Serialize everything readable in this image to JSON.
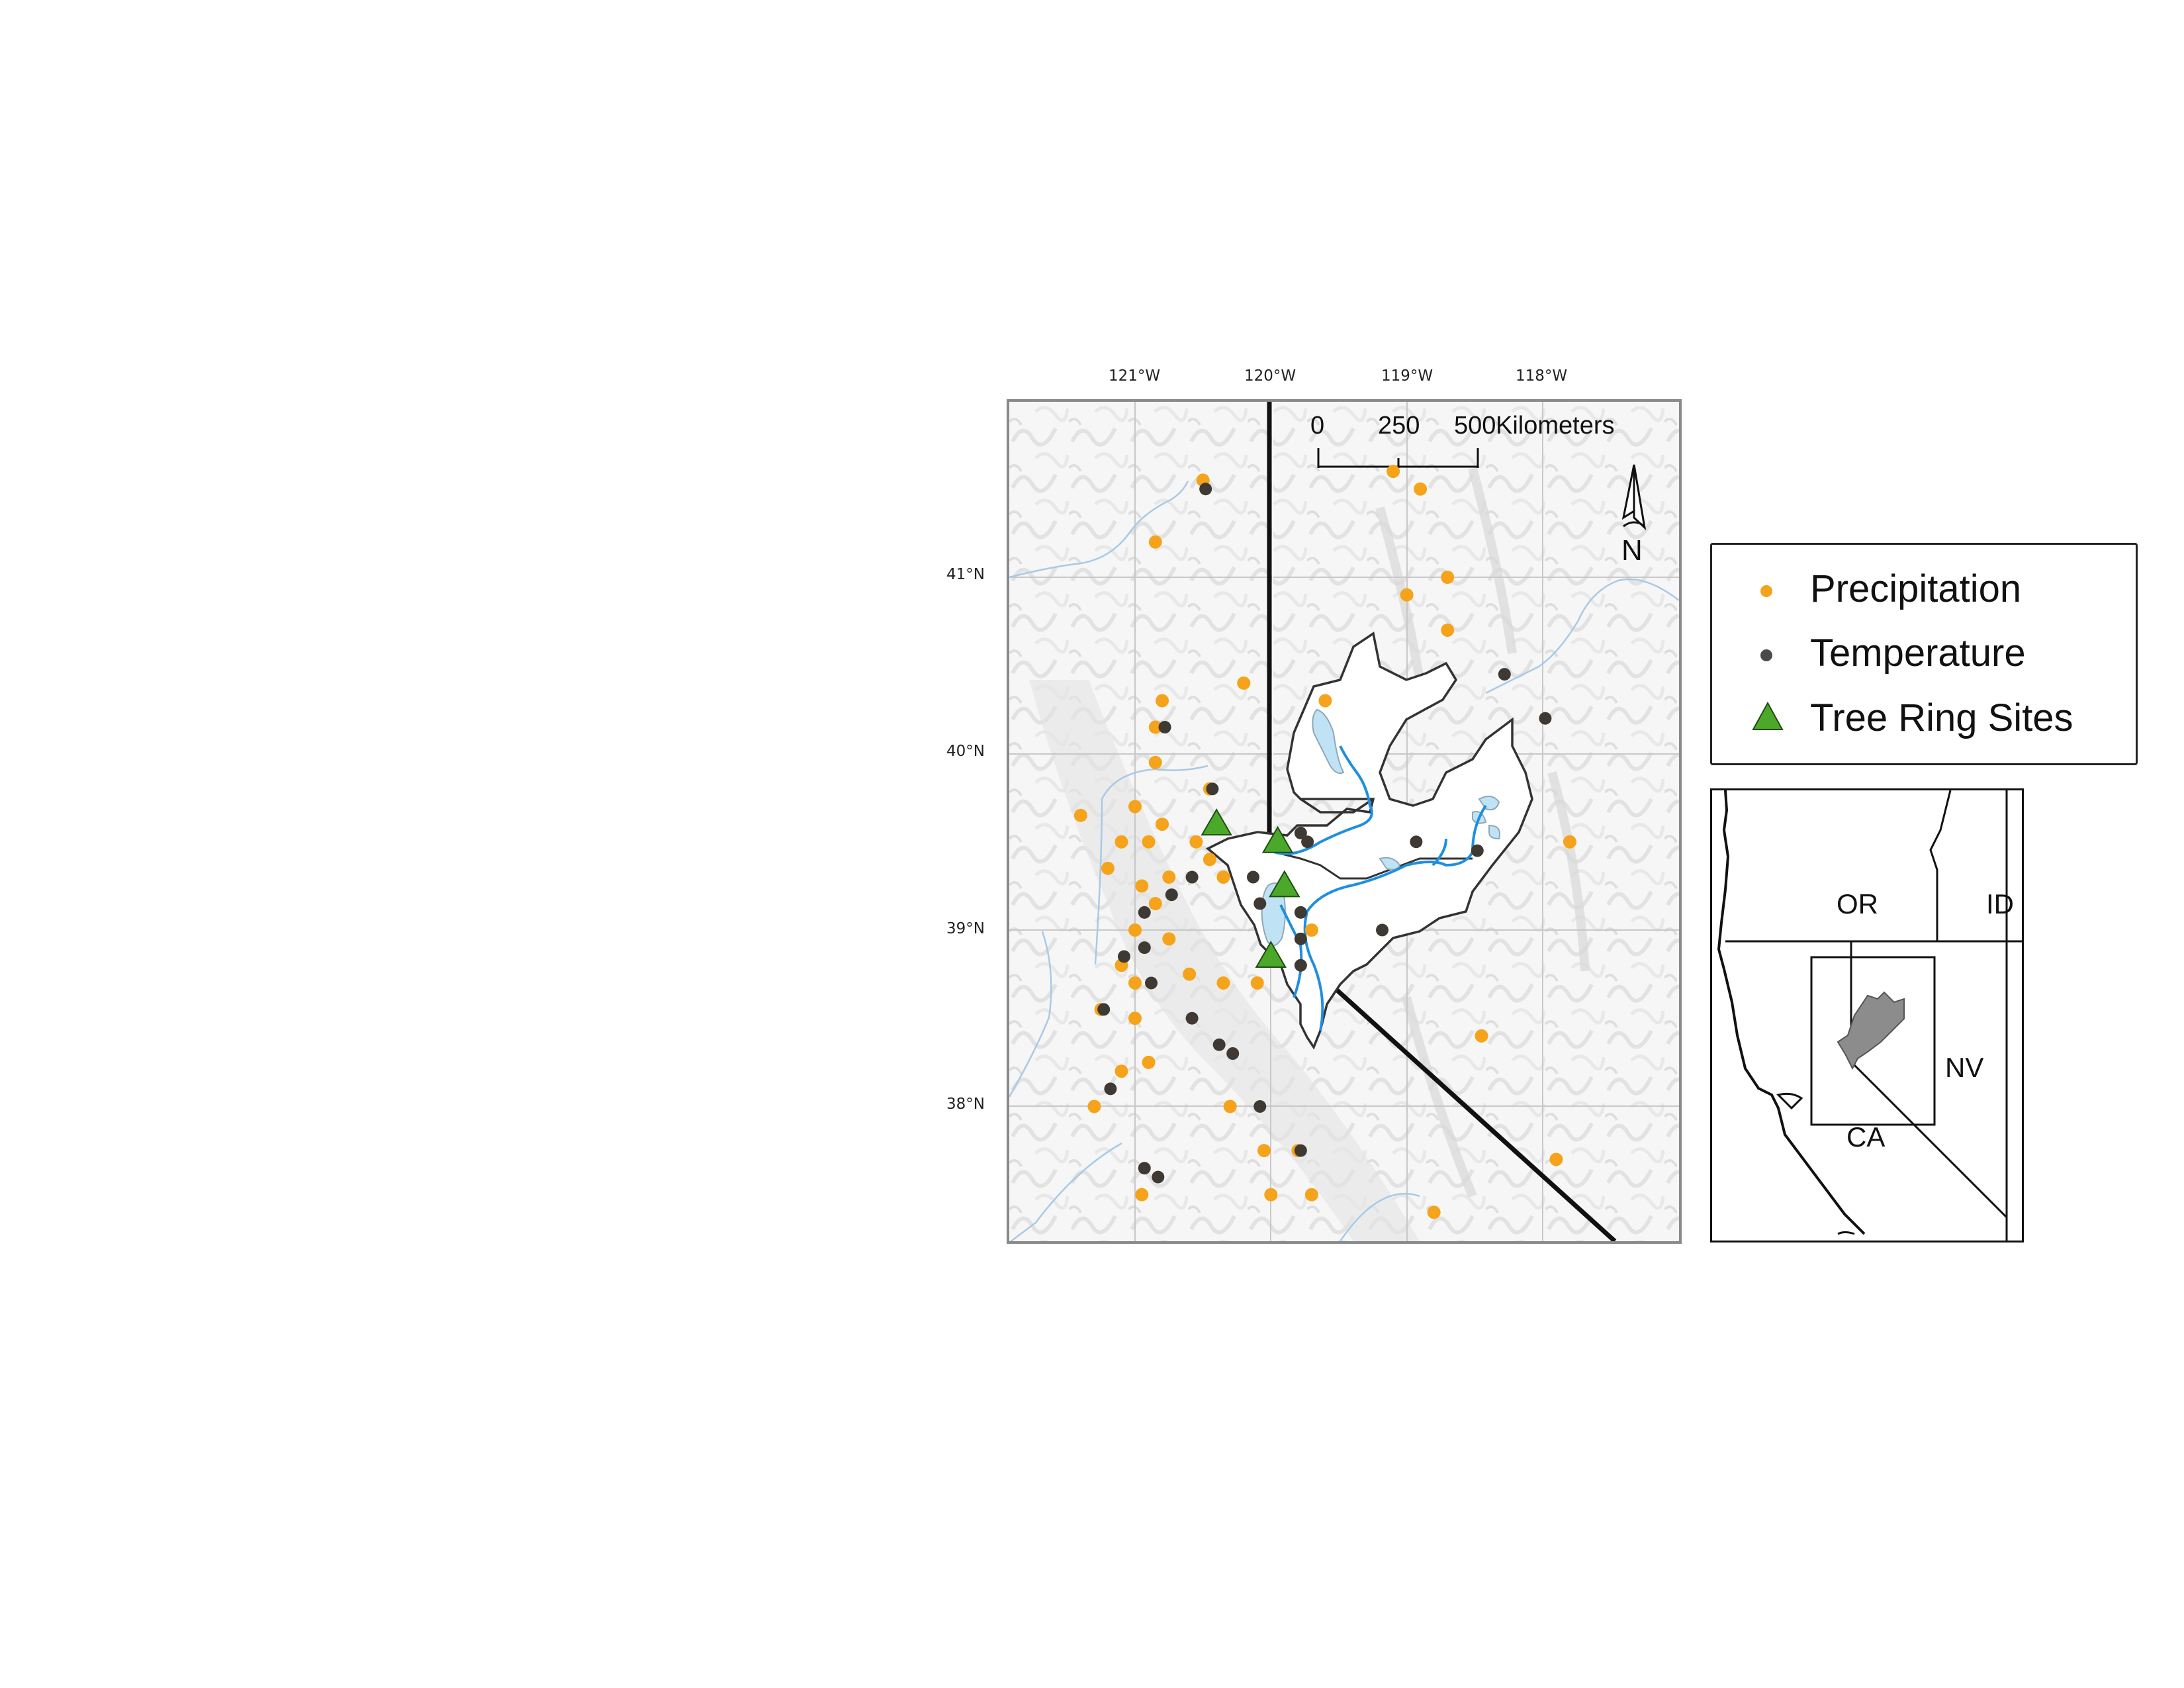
{
  "longitude_labels": [
    "121°W",
    "120°W",
    "119°W",
    "118°W"
  ],
  "latitude_labels": [
    "41°N",
    "40°N",
    "39°N",
    "38°N"
  ],
  "scale_bar": {
    "ticks": [
      "0",
      "250",
      "500"
    ],
    "unit": "Kilometers"
  },
  "north_arrow": {
    "label": "N"
  },
  "legend": {
    "items": [
      {
        "label": "Precipitation",
        "symbol": "circle",
        "color": "#F5A31A"
      },
      {
        "label": "Temperature",
        "symbol": "circle",
        "color": "#4A4A4A"
      },
      {
        "label": "Tree Ring Sites",
        "symbol": "triangle",
        "color": "#4CA82A"
      }
    ]
  },
  "inset_map": {
    "labels": {
      "or": "OR",
      "id": "ID",
      "nv": "NV",
      "ca": "CA"
    }
  },
  "colors": {
    "precip": "#F5A31A",
    "temp": "#3E3A33",
    "tree": "#4CA82A",
    "river": "#1E8FE0",
    "lake": "#BFE3F5",
    "basin_fill": "#FFFFFF",
    "inset_basin": "#8C8C8C"
  },
  "stations": {
    "precipitation": [
      [
        -120.5,
        41.55
      ],
      [
        -120.85,
        41.2
      ],
      [
        -119.1,
        41.6
      ],
      [
        -118.9,
        41.5
      ],
      [
        -118.7,
        41.0
      ],
      [
        -119.0,
        40.9
      ],
      [
        -120.2,
        40.4
      ],
      [
        -120.8,
        40.3
      ],
      [
        -120.85,
        40.15
      ],
      [
        -120.85,
        39.95
      ],
      [
        -120.45,
        39.8
      ],
      [
        -121.0,
        39.7
      ],
      [
        -120.8,
        39.6
      ],
      [
        -120.9,
        39.5
      ],
      [
        -121.1,
        39.5
      ],
      [
        -120.55,
        39.5
      ],
      [
        -120.45,
        39.4
      ],
      [
        -120.35,
        39.3
      ],
      [
        -121.2,
        39.35
      ],
      [
        -120.95,
        39.25
      ],
      [
        -120.75,
        39.3
      ],
      [
        -120.85,
        39.15
      ],
      [
        -121.0,
        39.0
      ],
      [
        -120.75,
        38.95
      ],
      [
        -121.1,
        38.8
      ],
      [
        -121.0,
        38.7
      ],
      [
        -120.6,
        38.75
      ],
      [
        -120.35,
        38.7
      ],
      [
        -120.1,
        38.7
      ],
      [
        -121.25,
        38.55
      ],
      [
        -121.1,
        38.2
      ],
      [
        -120.9,
        38.25
      ],
      [
        -121.3,
        38.0
      ],
      [
        -120.3,
        38.0
      ],
      [
        -120.05,
        37.75
      ],
      [
        -119.8,
        37.75
      ],
      [
        -120.95,
        37.5
      ],
      [
        -120.0,
        37.5
      ],
      [
        -119.7,
        37.5
      ],
      [
        -119.6,
        40.3
      ],
      [
        -119.7,
        39.0
      ],
      [
        -118.7,
        40.7
      ],
      [
        -118.45,
        38.4
      ],
      [
        -117.8,
        39.5
      ],
      [
        -117.9,
        37.7
      ],
      [
        -118.8,
        37.4
      ],
      [
        -121.0,
        38.5
      ],
      [
        -121.4,
        39.65
      ]
    ],
    "temperature": [
      [
        -120.5,
        41.5
      ],
      [
        -120.8,
        40.15
      ],
      [
        -120.45,
        39.8
      ],
      [
        -120.6,
        39.3
      ],
      [
        -120.75,
        39.2
      ],
      [
        -120.95,
        39.1
      ],
      [
        -121.1,
        38.85
      ],
      [
        -120.95,
        38.9
      ],
      [
        -121.25,
        38.55
      ],
      [
        -120.9,
        38.7
      ],
      [
        -120.6,
        38.5
      ],
      [
        -120.3,
        38.3
      ],
      [
        -120.4,
        38.35
      ],
      [
        -121.2,
        38.1
      ],
      [
        -120.95,
        37.65
      ],
      [
        -120.85,
        37.6
      ],
      [
        -120.1,
        38.0
      ],
      [
        -119.8,
        37.75
      ],
      [
        -120.15,
        39.3
      ],
      [
        -120.1,
        39.15
      ],
      [
        -119.8,
        39.55
      ],
      [
        -119.75,
        39.5
      ],
      [
        -119.8,
        39.1
      ],
      [
        -119.8,
        38.95
      ],
      [
        -119.8,
        38.8
      ],
      [
        -119.2,
        39.0
      ],
      [
        -118.95,
        39.5
      ],
      [
        -118.5,
        39.45
      ],
      [
        -118.3,
        40.45
      ],
      [
        -118.0,
        40.2
      ]
    ],
    "tree_ring": [
      [
        -120.4,
        39.6
      ],
      [
        -119.95,
        39.5
      ],
      [
        -119.9,
        39.25
      ],
      [
        -120.0,
        38.85
      ]
    ]
  }
}
